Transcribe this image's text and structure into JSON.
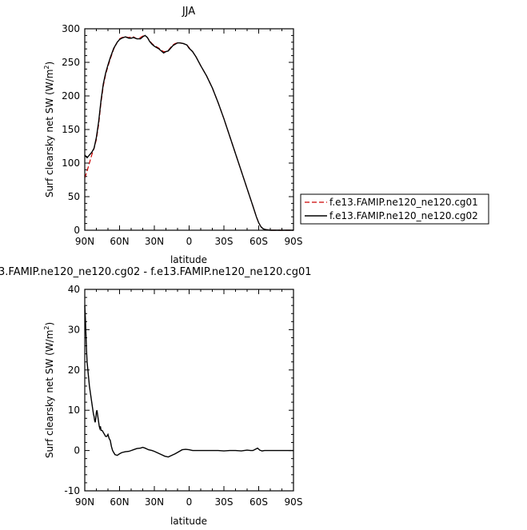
{
  "chart_data": [
    {
      "type": "line",
      "title": "JJA",
      "xlabel": "latitude",
      "ylabel": "Surf clearsky net SW (W/m",
      "ylabel_sup": "2",
      "ylabel_end": ")",
      "xlim": [
        90,
        -90
      ],
      "ylim": [
        0,
        300
      ],
      "x_ticks": [
        90,
        60,
        30,
        0,
        -30,
        -60,
        -90
      ],
      "x_tick_labels": [
        "90N",
        "60N",
        "30N",
        "0",
        "30S",
        "60S",
        "90S"
      ],
      "y_ticks": [
        0,
        50,
        100,
        150,
        200,
        250,
        300
      ],
      "y_tick_labels": [
        "0",
        "50",
        "100",
        "150",
        "200",
        "250",
        "300"
      ],
      "legend_position": "right",
      "series": [
        {
          "name": "f.e13.FAMIP.ne120_ne120.cg01",
          "color": "#cc0000",
          "dash": "dashed",
          "x": [
            90,
            88,
            86,
            84,
            82,
            80,
            78,
            76,
            74,
            72,
            70,
            68,
            65,
            62,
            60,
            58,
            55,
            52,
            50,
            48,
            45,
            42,
            40,
            38,
            36,
            34,
            32,
            30,
            28,
            26,
            24,
            22,
            20,
            18,
            16,
            14,
            12,
            10,
            8,
            5,
            2,
            0,
            -3,
            -6,
            -10,
            -15,
            -20,
            -25,
            -30,
            -35,
            -40,
            -45,
            -50,
            -55,
            -58,
            -60,
            -62,
            -64,
            -66,
            -70,
            -80,
            -90
          ],
          "y": [
            78,
            88,
            100,
            112,
            122,
            135,
            158,
            190,
            215,
            232,
            244,
            255,
            270,
            280,
            285,
            287,
            288,
            287,
            288,
            288,
            285,
            287,
            289,
            290,
            287,
            282,
            278,
            275,
            273,
            271,
            268,
            266,
            266,
            268,
            272,
            276,
            278,
            279,
            279,
            278,
            276,
            272,
            266,
            258,
            245,
            230,
            212,
            190,
            166,
            140,
            114,
            88,
            62,
            36,
            20,
            11,
            5,
            2,
            1,
            0,
            0,
            0
          ]
        },
        {
          "name": "f.e13.FAMIP.ne120_ne120.cg02",
          "color": "#000000",
          "dash": "solid",
          "x": [
            90,
            88,
            86,
            84,
            82,
            80,
            78,
            76,
            74,
            72,
            70,
            68,
            65,
            62,
            60,
            58,
            55,
            52,
            50,
            48,
            45,
            42,
            40,
            38,
            36,
            34,
            32,
            30,
            28,
            26,
            24,
            22,
            20,
            18,
            16,
            14,
            12,
            10,
            8,
            5,
            2,
            0,
            -3,
            -6,
            -10,
            -15,
            -20,
            -25,
            -30,
            -35,
            -40,
            -45,
            -50,
            -55,
            -58,
            -60,
            -62,
            -64,
            -66,
            -70,
            -80,
            -90
          ],
          "y": [
            112,
            108,
            112,
            116,
            122,
            138,
            162,
            193,
            218,
            234,
            246,
            257,
            271,
            280,
            284,
            286,
            288,
            286,
            286,
            287,
            285,
            285,
            288,
            290,
            287,
            281,
            277,
            274,
            272,
            270,
            267,
            264,
            266,
            267,
            271,
            275,
            277,
            279,
            279,
            278,
            276,
            271,
            266,
            258,
            245,
            230,
            212,
            190,
            166,
            140,
            114,
            88,
            62,
            36,
            20,
            11,
            5,
            2,
            1,
            0,
            0,
            0
          ]
        }
      ]
    },
    {
      "type": "line",
      "title": "3.FAMIP.ne120_ne120.cg02 - f.e13.FAMIP.ne120_ne120.cg01",
      "xlabel": "latitude",
      "ylabel": "Surf clearsky net SW (W/m",
      "ylabel_sup": "2",
      "ylabel_end": ")",
      "xlim": [
        90,
        -90
      ],
      "ylim": [
        -10,
        40
      ],
      "x_ticks": [
        90,
        60,
        30,
        0,
        -30,
        -60,
        -90
      ],
      "x_tick_labels": [
        "90N",
        "60N",
        "30N",
        "0",
        "30S",
        "60S",
        "90S"
      ],
      "y_ticks": [
        -10,
        0,
        10,
        20,
        30,
        40
      ],
      "y_tick_labels": [
        "-10",
        "0",
        "10",
        "20",
        "30",
        "40"
      ],
      "series": [
        {
          "color": "#000000",
          "dash": "solid",
          "x": [
            90,
            89.5,
            89,
            88.5,
            88,
            87.5,
            87,
            86,
            85,
            84,
            83,
            82.5,
            82,
            81.5,
            81,
            80.5,
            80,
            79.5,
            79,
            78,
            77.5,
            77,
            76.5,
            76,
            75,
            74,
            73,
            72,
            71,
            70,
            69,
            68,
            67,
            66,
            65,
            64,
            62,
            60,
            58,
            55,
            52,
            50,
            48,
            45,
            42,
            40,
            38,
            35,
            32,
            30,
            27,
            24,
            21,
            18,
            15,
            12,
            9,
            6,
            3,
            0,
            -3,
            -6,
            -10,
            -15,
            -20,
            -25,
            -30,
            -35,
            -40,
            -45,
            -50,
            -53,
            -55,
            -57,
            -59,
            -61,
            -63,
            -65,
            -70,
            -75,
            -80,
            -85,
            -90
          ],
          "y": [
            36,
            33,
            29,
            25,
            22,
            20.5,
            19,
            16,
            14,
            12,
            10,
            9,
            8.5,
            7.5,
            7,
            8,
            9.5,
            10,
            9,
            7,
            6,
            5.5,
            6,
            5,
            5,
            4.5,
            4,
            3.5,
            3.5,
            4,
            3,
            2.5,
            1,
            0,
            -0.5,
            -1,
            -1.2,
            -0.8,
            -0.5,
            -0.3,
            -0.2,
            0,
            0.2,
            0.5,
            0.6,
            0.8,
            0.6,
            0.2,
            0,
            -0.2,
            -0.6,
            -1.0,
            -1.4,
            -1.6,
            -1.2,
            -0.8,
            -0.3,
            0.2,
            0.3,
            0.2,
            0,
            0,
            0,
            0,
            0,
            0,
            -0.1,
            0,
            0,
            -0.1,
            0.1,
            0,
            0,
            0.3,
            0.6,
            0.1,
            -0.1,
            0,
            0,
            0,
            0,
            0,
            0
          ]
        }
      ]
    }
  ]
}
